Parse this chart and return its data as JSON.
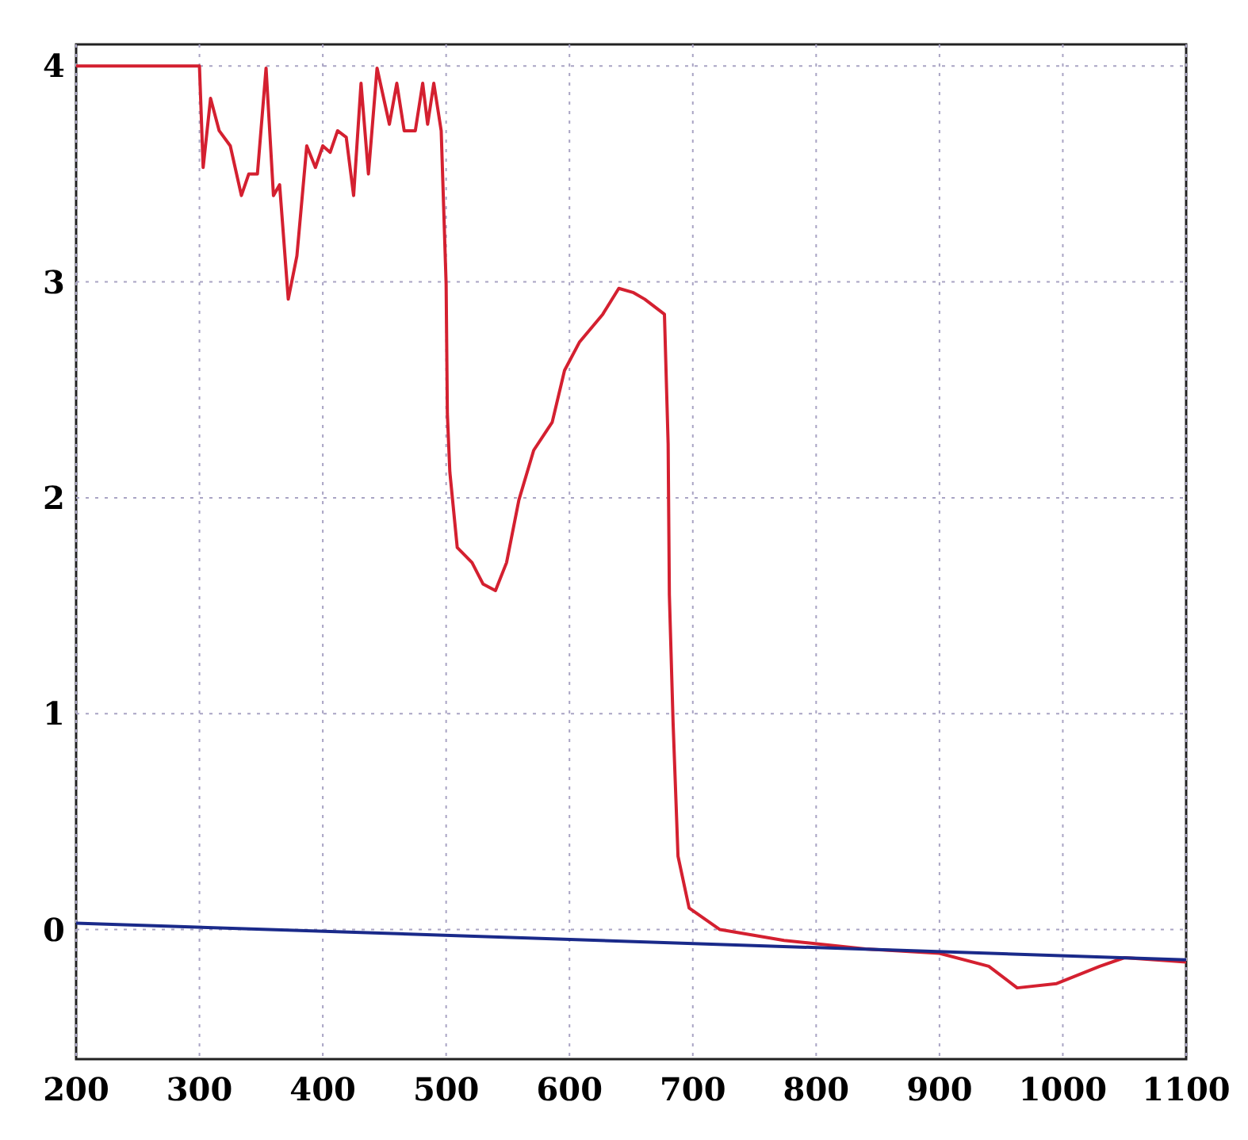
{
  "chart_data": {
    "type": "line",
    "xlim": [
      200,
      1100
    ],
    "ylim": [
      -0.6,
      4.1
    ],
    "xticks": [
      200,
      300,
      400,
      500,
      600,
      700,
      800,
      900,
      1000,
      1100
    ],
    "yticks": [
      0,
      1,
      2,
      3,
      4
    ],
    "grid": true,
    "line_style": "solid",
    "marker": "none",
    "series": [
      {
        "color": "#d42030",
        "x": [
          200,
          300,
          303,
          309,
          316,
          325,
          334,
          340,
          347,
          354,
          360,
          365,
          372,
          379,
          387,
          394,
          400,
          406,
          412,
          419,
          425,
          431,
          437,
          444,
          454,
          460,
          466,
          475,
          481,
          485,
          490,
          496,
          500,
          501,
          503,
          509,
          521,
          530,
          540,
          549,
          559,
          571,
          586,
          596,
          608,
          627,
          640,
          652,
          661,
          677,
          680,
          681,
          684,
          688,
          697,
          722,
          774,
          840,
          900,
          940,
          963,
          995,
          1030,
          1050,
          1100
        ],
        "values": [
          4.0,
          4.0,
          3.53,
          3.85,
          3.7,
          3.63,
          3.4,
          3.5,
          3.5,
          3.99,
          3.4,
          3.45,
          2.92,
          3.12,
          3.63,
          3.53,
          3.63,
          3.6,
          3.7,
          3.67,
          3.4,
          3.92,
          3.5,
          3.99,
          3.73,
          3.92,
          3.7,
          3.7,
          3.92,
          3.73,
          3.92,
          3.7,
          2.99,
          2.39,
          2.12,
          1.77,
          1.7,
          1.6,
          1.57,
          1.7,
          1.99,
          2.22,
          2.35,
          2.59,
          2.72,
          2.85,
          2.97,
          2.95,
          2.92,
          2.85,
          2.25,
          1.55,
          0.96,
          0.34,
          0.1,
          0.0,
          -0.05,
          -0.09,
          -0.11,
          -0.17,
          -0.27,
          -0.25,
          -0.17,
          -0.13,
          -0.15
        ]
      },
      {
        "color": "#1a2a8a",
        "x": [
          200,
          1100
        ],
        "values": [
          0.03,
          -0.14
        ]
      }
    ]
  }
}
